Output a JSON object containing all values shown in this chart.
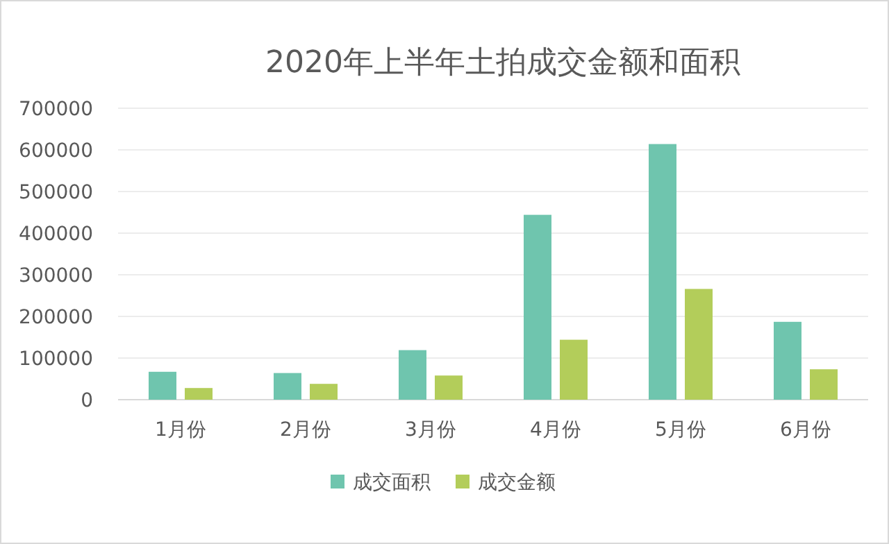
{
  "chart_data": {
    "type": "bar",
    "title": "2020年上半年土拍成交金额和面积",
    "categories": [
      "1月份",
      "2月份",
      "3月份",
      "4月份",
      "5月份",
      "6月份"
    ],
    "series": [
      {
        "name": "成交面积",
        "color": "#6fc5ae",
        "values": [
          67000,
          64000,
          119000,
          444000,
          614000,
          187000
        ]
      },
      {
        "name": "成交金额",
        "color": "#b3cd5a",
        "values": [
          28000,
          38000,
          58000,
          144000,
          266000,
          73000
        ]
      }
    ],
    "ylim": [
      0,
      700000
    ],
    "yticks": [
      0,
      100000,
      200000,
      300000,
      400000,
      500000,
      600000,
      700000
    ],
    "grid": "y",
    "legend": "bottom"
  }
}
